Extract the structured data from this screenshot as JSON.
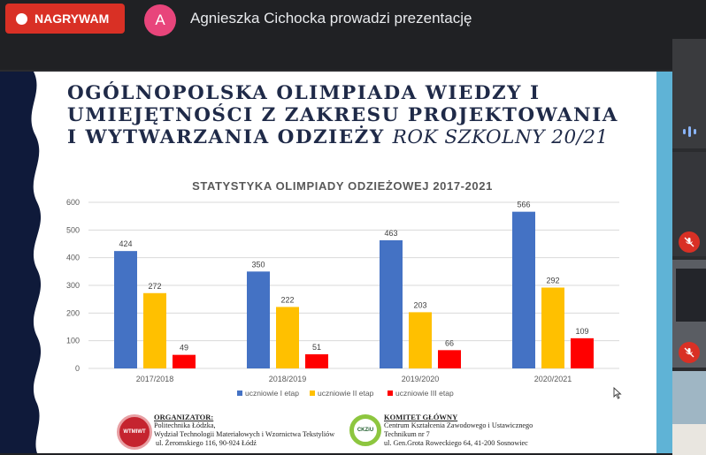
{
  "meeting": {
    "recording_label": "NAGRYWAM",
    "avatar_letter": "A",
    "presenter_text": "Agnieszka Cichocka prowadzi prezentację"
  },
  "slide": {
    "title_bold": "OGÓLNOPOLSKA OLIMPIADA WIEDZY I UMIEJĘTNOŚCI Z ZAKRESU PROJEKTOWANIA I WYTWARZANIA ODZIEŻY",
    "title_italic": "ROK SZKOLNY 20/21",
    "organizer": {
      "heading": "ORGANIZATOR:",
      "lines": [
        "Politechnika Łódzka,",
        "Wydział Technologii Materiałowych i Wzornictwa Tekstyliów",
        "ul. Żeromskiego 116, 90-924 Łódź"
      ],
      "logo_text": "WTMIWT"
    },
    "committee": {
      "heading": "KOMITET GŁÓWNY",
      "lines": [
        "Centrum Kształcenia Zawodowego i Ustawicznego",
        "Technikum nr 7",
        "ul. Gen.Grota Roweckiego 64, 41-200 Sosnowiec"
      ],
      "logo_text": "CKZiU"
    }
  },
  "colors": {
    "series1": "#4472c4",
    "series2": "#ffc000",
    "series3": "#ff0000"
  },
  "chart_data": {
    "type": "bar",
    "title": "STATYSTYKA OLIMPIADY ODZIEŻOWEJ 2017-2021",
    "categories": [
      "2017/2018",
      "2018/2019",
      "2019/2020",
      "2020/2021"
    ],
    "series": [
      {
        "name": "uczniowie I etap",
        "values": [
          424,
          350,
          463,
          566
        ]
      },
      {
        "name": "uczniowie II etap",
        "values": [
          272,
          222,
          203,
          292
        ]
      },
      {
        "name": "uczniowie III etap",
        "values": [
          49,
          51,
          66,
          109
        ]
      }
    ],
    "ylim": [
      0,
      600
    ],
    "yticks": [
      "0",
      "100",
      "200",
      "300",
      "400",
      "500",
      "600"
    ],
    "legend": "bottom"
  }
}
